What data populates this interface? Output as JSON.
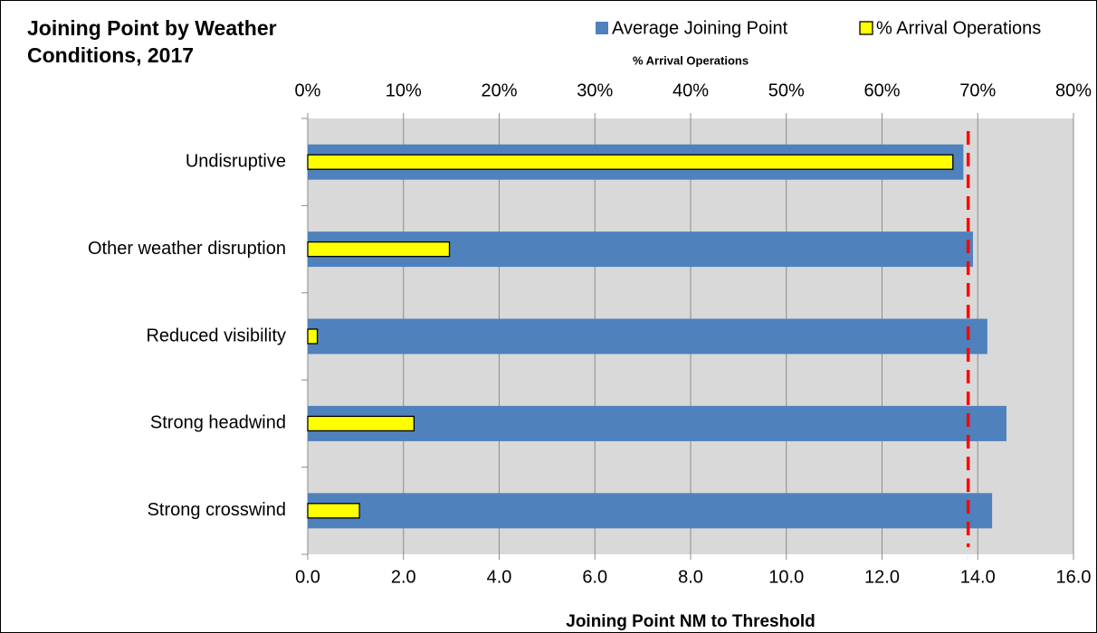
{
  "chart_data": {
    "type": "hbar",
    "title": "Joining Point by Weather Conditions, 2017",
    "x_label": "Joining Point NM to Threshold",
    "x2_label": "% Arrival Operations",
    "categories": [
      "Undisruptive",
      "Other weather disruption",
      "Reduced visibility",
      "Strong headwind",
      "Strong crosswind"
    ],
    "series": [
      {
        "name": "Average Joining Point",
        "color": "#4f81bd",
        "values": [
          13.7,
          13.9,
          14.2,
          14.6,
          14.3
        ]
      },
      {
        "name": "% Arrival Operations",
        "color": "#ffff00",
        "axis": "x2",
        "values": [
          67.4,
          14.8,
          1.0,
          11.1,
          5.4
        ]
      }
    ],
    "reference_line": {
      "value": 13.8,
      "color": "#ff0000"
    },
    "xlim": [
      0,
      16
    ],
    "xticks": [
      {
        "value": 0,
        "label": "0.0"
      },
      {
        "value": 2,
        "label": "2.0"
      },
      {
        "value": 4,
        "label": "4.0"
      },
      {
        "value": 6,
        "label": "6.0"
      },
      {
        "value": 8,
        "label": "8.0"
      },
      {
        "value": 10,
        "label": "10.0"
      },
      {
        "value": 12,
        "label": "12.0"
      },
      {
        "value": 14,
        "label": "14.0"
      },
      {
        "value": 16,
        "label": "16.0"
      }
    ],
    "x2lim": [
      0,
      80
    ],
    "x2ticks": [
      {
        "value": 0,
        "label": "0%"
      },
      {
        "value": 10,
        "label": "10%"
      },
      {
        "value": 20,
        "label": "20%"
      },
      {
        "value": 30,
        "label": "30%"
      },
      {
        "value": 40,
        "label": "40%"
      },
      {
        "value": 50,
        "label": "50%"
      },
      {
        "value": 60,
        "label": "60%"
      },
      {
        "value": 70,
        "label": "70%"
      },
      {
        "value": 80,
        "label": "80%"
      }
    ],
    "grid": true,
    "plot_background": "#d9d9d9",
    "legend": "top-right"
  }
}
